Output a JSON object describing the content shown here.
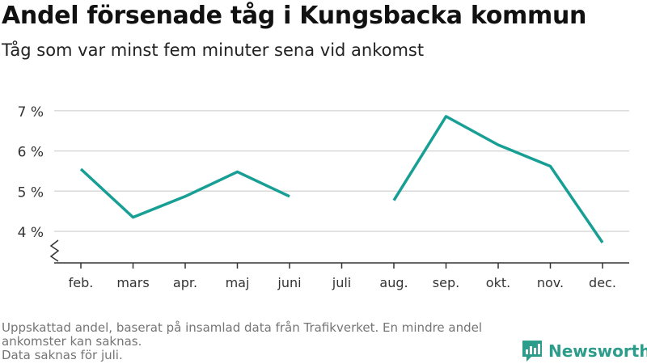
{
  "title": "Andel försenade tåg i Kungsbacka kommun",
  "subtitle": "Tåg som var minst fem minuter sena vid ankomst",
  "footer": {
    "note_line1": "Uppskattad andel, baserat på insamlad data från Trafikverket. En mindre andel",
    "note_line2": "ankomster kan saknas.",
    "note_line3": "Data saknas för juli."
  },
  "brand": {
    "name": "Newsworthy",
    "icon": "newsworthy-logo-icon",
    "color": "#2c9c8b"
  },
  "chart_data": {
    "type": "line",
    "title": "Andel försenade tåg i Kungsbacka kommun",
    "subtitle": "Tåg som var minst fem minuter sena vid ankomst",
    "categories": [
      "feb.",
      "mars",
      "apr.",
      "maj",
      "juni",
      "juli",
      "aug.",
      "sep.",
      "okt.",
      "nov.",
      "dec."
    ],
    "series": [
      {
        "values": [
          5.55,
          4.35,
          4.87,
          5.48,
          4.87,
          null,
          4.77,
          6.86,
          6.15,
          5.62,
          3.72
        ],
        "color": "#179f95"
      }
    ],
    "yticks": [
      4,
      5,
      6,
      7
    ],
    "ytick_labels": [
      "4 %",
      "5 %",
      "6 %",
      "7 %"
    ],
    "ylim": [
      3.2,
      7.3
    ],
    "axis_break": true,
    "grid": true,
    "xlabel": "",
    "ylabel": ""
  }
}
